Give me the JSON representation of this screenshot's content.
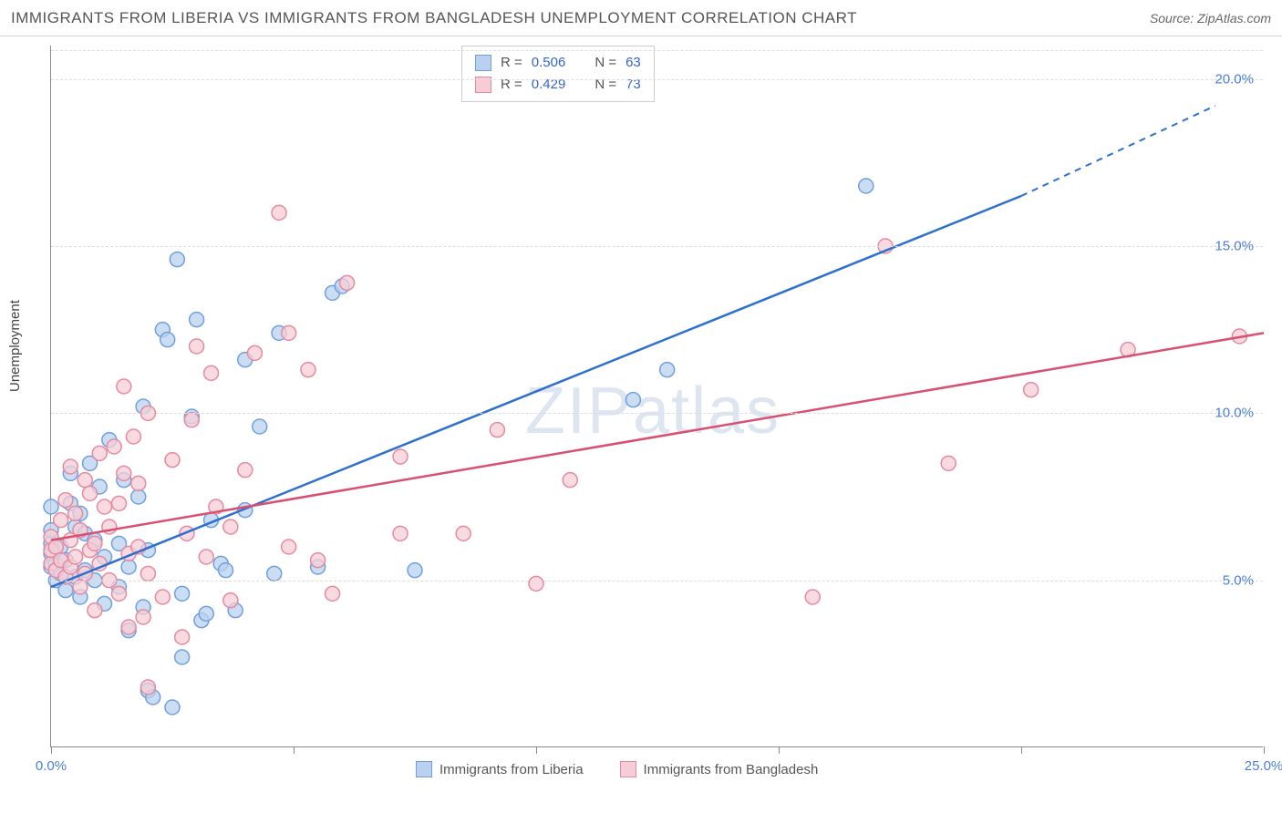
{
  "title": "IMMIGRANTS FROM LIBERIA VS IMMIGRANTS FROM BANGLADESH UNEMPLOYMENT CORRELATION CHART",
  "source": "Source: ZipAtlas.com",
  "watermark": "ZIPatlas",
  "ylabel": "Unemployment",
  "chart": {
    "type": "scatter",
    "xlim": [
      0,
      25
    ],
    "ylim": [
      0,
      21
    ],
    "x_ticks": [
      0,
      5,
      10,
      15,
      20,
      25
    ],
    "x_tick_labels": [
      "0.0%",
      "",
      "",
      "",
      "",
      "25.0%"
    ],
    "y_ticks": [
      5,
      10,
      15,
      20
    ],
    "y_tick_labels": [
      "5.0%",
      "10.0%",
      "15.0%",
      "20.0%"
    ],
    "grid_color": "#dddddd",
    "axis_color": "#888888",
    "background_color": "#ffffff",
    "marker_radius": 8,
    "marker_stroke_width": 1.5,
    "line_width": 2.5
  },
  "series": [
    {
      "name": "Immigrants from Liberia",
      "fill": "#b9d1ef",
      "stroke": "#6fa0dd",
      "line_color": "#2e6fd0",
      "r_value": "0.506",
      "n_value": "63",
      "regression": {
        "x1": 0,
        "y1": 4.8,
        "x2": 20,
        "y2": 16.5,
        "dash_x2": 24,
        "dash_y2": 19.2
      },
      "points": [
        [
          0.0,
          5.4
        ],
        [
          0.0,
          5.8
        ],
        [
          0.0,
          6.1
        ],
        [
          0.0,
          6.5
        ],
        [
          0.0,
          7.2
        ],
        [
          0.1,
          5.0
        ],
        [
          0.1,
          5.5
        ],
        [
          0.2,
          5.2
        ],
        [
          0.2,
          6.0
        ],
        [
          0.3,
          4.7
        ],
        [
          0.3,
          5.6
        ],
        [
          0.4,
          7.3
        ],
        [
          0.4,
          8.2
        ],
        [
          0.5,
          6.6
        ],
        [
          0.5,
          5.1
        ],
        [
          0.6,
          4.5
        ],
        [
          0.6,
          7.0
        ],
        [
          0.7,
          5.3
        ],
        [
          0.7,
          6.4
        ],
        [
          0.8,
          8.5
        ],
        [
          0.9,
          5.0
        ],
        [
          0.9,
          6.2
        ],
        [
          1.0,
          7.8
        ],
        [
          1.1,
          4.3
        ],
        [
          1.1,
          5.7
        ],
        [
          1.2,
          9.2
        ],
        [
          1.4,
          4.8
        ],
        [
          1.4,
          6.1
        ],
        [
          1.5,
          8.0
        ],
        [
          1.6,
          5.4
        ],
        [
          1.6,
          3.5
        ],
        [
          1.8,
          7.5
        ],
        [
          1.9,
          4.2
        ],
        [
          1.9,
          10.2
        ],
        [
          2.0,
          5.9
        ],
        [
          2.0,
          1.7
        ],
        [
          2.1,
          1.5
        ],
        [
          2.3,
          12.5
        ],
        [
          2.4,
          12.2
        ],
        [
          2.5,
          1.2
        ],
        [
          2.6,
          14.6
        ],
        [
          2.7,
          4.6
        ],
        [
          2.7,
          2.7
        ],
        [
          2.9,
          9.9
        ],
        [
          3.0,
          12.8
        ],
        [
          3.1,
          3.8
        ],
        [
          3.2,
          4.0
        ],
        [
          3.3,
          6.8
        ],
        [
          3.5,
          5.5
        ],
        [
          3.6,
          5.3
        ],
        [
          3.8,
          4.1
        ],
        [
          4.0,
          7.1
        ],
        [
          4.0,
          11.6
        ],
        [
          4.3,
          9.6
        ],
        [
          4.6,
          5.2
        ],
        [
          4.7,
          12.4
        ],
        [
          5.5,
          5.4
        ],
        [
          5.8,
          13.6
        ],
        [
          6.0,
          13.8
        ],
        [
          7.5,
          5.3
        ],
        [
          12.0,
          10.4
        ],
        [
          12.7,
          11.3
        ],
        [
          16.8,
          16.8
        ]
      ]
    },
    {
      "name": "Immigrants from Bangladesh",
      "fill": "#f6cdd6",
      "stroke": "#e48aa0",
      "line_color": "#d94f72",
      "r_value": "0.429",
      "n_value": "73",
      "regression": {
        "x1": 0,
        "y1": 6.2,
        "x2": 25,
        "y2": 12.4
      },
      "points": [
        [
          0.0,
          5.5
        ],
        [
          0.0,
          5.9
        ],
        [
          0.0,
          6.3
        ],
        [
          0.1,
          5.3
        ],
        [
          0.1,
          6.0
        ],
        [
          0.2,
          5.6
        ],
        [
          0.2,
          6.8
        ],
        [
          0.3,
          5.1
        ],
        [
          0.3,
          7.4
        ],
        [
          0.4,
          5.4
        ],
        [
          0.4,
          6.2
        ],
        [
          0.4,
          8.4
        ],
        [
          0.5,
          5.7
        ],
        [
          0.5,
          7.0
        ],
        [
          0.6,
          4.8
        ],
        [
          0.6,
          6.5
        ],
        [
          0.7,
          5.2
        ],
        [
          0.7,
          8.0
        ],
        [
          0.8,
          5.9
        ],
        [
          0.8,
          7.6
        ],
        [
          0.9,
          4.1
        ],
        [
          0.9,
          6.1
        ],
        [
          1.0,
          5.5
        ],
        [
          1.0,
          8.8
        ],
        [
          1.1,
          7.2
        ],
        [
          1.2,
          5.0
        ],
        [
          1.2,
          6.6
        ],
        [
          1.3,
          9.0
        ],
        [
          1.4,
          4.6
        ],
        [
          1.4,
          7.3
        ],
        [
          1.5,
          8.2
        ],
        [
          1.5,
          10.8
        ],
        [
          1.6,
          5.8
        ],
        [
          1.6,
          3.6
        ],
        [
          1.7,
          9.3
        ],
        [
          1.8,
          6.0
        ],
        [
          1.8,
          7.9
        ],
        [
          1.9,
          3.9
        ],
        [
          2.0,
          10.0
        ],
        [
          2.0,
          5.2
        ],
        [
          2.0,
          1.8
        ],
        [
          2.3,
          4.5
        ],
        [
          2.5,
          8.6
        ],
        [
          2.7,
          3.3
        ],
        [
          2.8,
          6.4
        ],
        [
          2.9,
          9.8
        ],
        [
          3.0,
          12.0
        ],
        [
          3.2,
          5.7
        ],
        [
          3.3,
          11.2
        ],
        [
          3.4,
          7.2
        ],
        [
          3.7,
          4.4
        ],
        [
          3.7,
          6.6
        ],
        [
          4.0,
          8.3
        ],
        [
          4.2,
          11.8
        ],
        [
          4.7,
          16.0
        ],
        [
          4.9,
          6.0
        ],
        [
          4.9,
          12.4
        ],
        [
          5.3,
          11.3
        ],
        [
          5.5,
          5.6
        ],
        [
          5.8,
          4.6
        ],
        [
          6.1,
          13.9
        ],
        [
          7.2,
          8.7
        ],
        [
          7.2,
          6.4
        ],
        [
          8.5,
          6.4
        ],
        [
          9.2,
          9.5
        ],
        [
          10.0,
          4.9
        ],
        [
          10.7,
          8.0
        ],
        [
          15.7,
          4.5
        ],
        [
          17.2,
          15.0
        ],
        [
          18.5,
          8.5
        ],
        [
          20.2,
          10.7
        ],
        [
          22.2,
          11.9
        ],
        [
          24.5,
          12.3
        ]
      ]
    }
  ],
  "legend": {
    "r_label": "R =",
    "n_label": "N ="
  }
}
